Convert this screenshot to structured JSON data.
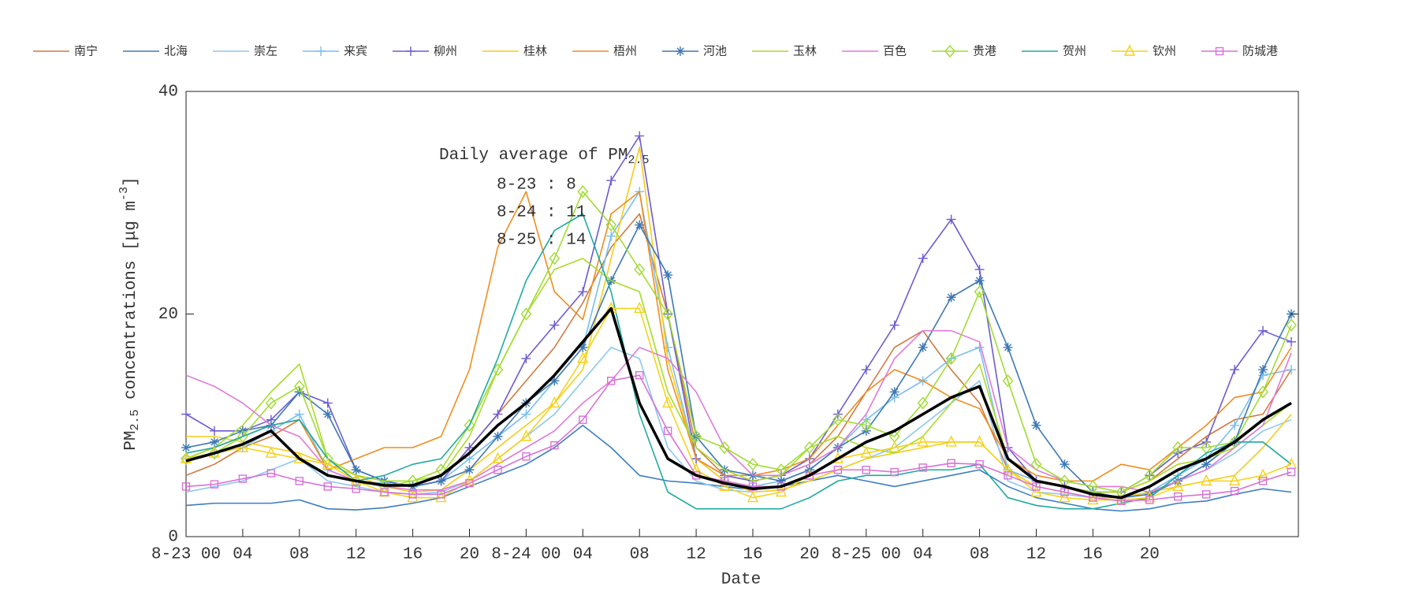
{
  "chart_data": {
    "type": "line",
    "xlabel": "Date",
    "ylabel": [
      "PM",
      "2.5",
      " concentrations [",
      "μg m",
      "-3",
      "]"
    ],
    "annotation": {
      "title": "Daily average of PM",
      "title_sub": "2.5",
      "lines": [
        "8-23 : 8",
        "8-24 : 11",
        "8-25 : 14"
      ]
    },
    "xlim": [
      0,
      78.5
    ],
    "ylim": [
      0,
      40
    ],
    "yticks": [
      0,
      20,
      40
    ],
    "xticks": [
      {
        "value": 0,
        "label": "8-23 00"
      },
      {
        "value": 4,
        "label": "04"
      },
      {
        "value": 8,
        "label": "08"
      },
      12,
      16,
      20,
      {
        "value": 24,
        "label": "8-24 00"
      },
      {
        "value": 28,
        "label": "04"
      },
      {
        "value": 32,
        "label": "08"
      },
      {
        "value": 36,
        "label": "12"
      },
      {
        "value": 40,
        "label": "16"
      },
      {
        "value": 44,
        "label": "20"
      },
      {
        "value": 48,
        "label": "8-25 00"
      },
      {
        "value": 52,
        "label": "04"
      },
      {
        "value": 56,
        "label": "08"
      },
      {
        "value": 60,
        "label": "12"
      },
      {
        "value": 64,
        "label": "16"
      },
      {
        "value": 68,
        "label": "20"
      }
    ],
    "x": [
      0,
      2,
      4,
      6,
      8,
      10,
      12,
      14,
      16,
      18,
      20,
      22,
      24,
      26,
      28,
      30,
      32,
      34,
      36,
      38,
      40,
      42,
      44,
      46,
      48,
      50,
      52,
      54,
      56,
      58,
      60,
      62,
      64,
      66,
      68,
      70,
      72,
      74,
      76,
      78
    ],
    "average": {
      "color": "#000000",
      "values": [
        6.8,
        7.5,
        8.3,
        9.5,
        7,
        5.5,
        5,
        4.6,
        4.6,
        5.5,
        7.5,
        10,
        12,
        14.5,
        17.5,
        20.5,
        12,
        7,
        5.5,
        4.8,
        4.3,
        4.5,
        5.5,
        7,
        8.5,
        9.5,
        11,
        12.5,
        13.5,
        7,
        5,
        4.5,
        3.8,
        3.5,
        4.5,
        6,
        7,
        8.5,
        10.5,
        12
      ]
    },
    "series": [
      {
        "name": "南宁",
        "color": "#d2783c",
        "values": [
          5.5,
          6.5,
          8,
          9,
          10.5,
          7,
          5.5,
          5,
          4.5,
          5,
          8,
          11,
          14,
          17,
          21,
          26,
          29,
          20,
          8,
          5.5,
          5,
          5.5,
          6.5,
          9,
          13,
          17,
          18.5,
          15,
          12,
          6,
          5,
          4.5,
          4,
          4,
          5,
          7,
          9,
          10.5,
          11,
          15
        ]
      },
      {
        "name": "北海",
        "color": "#3c7dbf",
        "values": [
          2.8,
          3,
          3,
          3,
          3.3,
          2.5,
          2.4,
          2.6,
          3,
          3.5,
          4.5,
          5.5,
          6.5,
          8,
          10,
          8,
          5.5,
          5,
          4.8,
          4.5,
          4.2,
          4.5,
          5,
          5.5,
          5,
          4.5,
          5,
          5.5,
          6,
          4.5,
          3.5,
          3,
          2.5,
          2.3,
          2.5,
          3,
          3.2,
          3.8,
          4.3,
          4
        ]
      },
      {
        "name": "崇左",
        "color": "#8cc8f0",
        "values": [
          4,
          4.5,
          5,
          6,
          7,
          5,
          4.5,
          4,
          3.8,
          4,
          5,
          7,
          9,
          11,
          14,
          17,
          16,
          8,
          5,
          4.2,
          4,
          4.2,
          5,
          6,
          7,
          8,
          10,
          12,
          14,
          5,
          4,
          3.8,
          3.5,
          3.5,
          4,
          5,
          6,
          7.5,
          9.5,
          10.5
        ]
      },
      {
        "name": "来宾",
        "color": "#78bfef",
        "marker": "plus",
        "values": [
          7,
          7.5,
          8,
          9.5,
          11,
          6,
          5,
          4.8,
          4.5,
          5,
          7,
          9,
          11,
          14,
          17,
          27,
          31,
          17,
          7,
          5,
          4.5,
          5,
          6,
          8,
          10.5,
          12.5,
          14,
          16,
          17,
          6,
          5,
          4.5,
          4,
          3.5,
          4,
          5.5,
          7,
          10,
          14.5,
          15
        ]
      },
      {
        "name": "柳州",
        "color": "#6b5bd2",
        "marker": "plus",
        "values": [
          11,
          9.5,
          9.5,
          10.5,
          13,
          12,
          6,
          5,
          4.5,
          5,
          8,
          11,
          16,
          19,
          22,
          32,
          36,
          20,
          7,
          5.5,
          5,
          5.5,
          7,
          11,
          15,
          19,
          25,
          28.5,
          24,
          8,
          5,
          4.5,
          4,
          4,
          5.5,
          7.5,
          8.5,
          15,
          18.5,
          17.5
        ]
      },
      {
        "name": "桂林",
        "color": "#f5cc1a",
        "values": [
          9,
          9,
          8.5,
          8,
          7.5,
          6.5,
          5.5,
          4.5,
          4,
          4.2,
          6,
          8,
          10,
          12,
          15,
          25,
          35,
          16,
          7,
          5,
          4,
          4.2,
          5,
          6,
          7,
          7.5,
          8,
          8.5,
          8.5,
          6,
          4.5,
          4,
          3.5,
          3.5,
          4,
          4.5,
          5,
          5.5,
          8,
          11
        ]
      },
      {
        "name": "梧州",
        "color": "#f08c1e",
        "values": [
          7,
          8,
          9,
          10,
          10.5,
          6,
          7,
          8,
          8,
          9,
          15,
          26,
          31,
          22,
          19.5,
          29,
          31,
          15,
          7,
          5.5,
          5.5,
          6,
          7,
          10,
          13,
          15,
          14,
          12.5,
          11.5,
          7,
          5.5,
          5,
          5,
          6.5,
          6,
          8,
          10,
          12.5,
          13,
          17
        ]
      },
      {
        "name": "河池",
        "color": "#3c78b4",
        "marker": "star",
        "values": [
          8,
          8.5,
          9.5,
          10,
          13,
          11,
          6,
          5,
          4.5,
          5,
          6,
          9,
          12,
          14,
          17,
          23,
          28,
          23.5,
          9,
          6,
          5.5,
          5,
          6,
          8,
          9.5,
          13,
          17,
          21.5,
          23,
          17,
          10,
          6.5,
          4,
          3.5,
          3.8,
          5,
          6.5,
          8.5,
          15,
          20
        ]
      },
      {
        "name": "玉林",
        "color": "#a8dc28",
        "values": [
          7,
          8,
          10,
          13,
          15.5,
          7,
          5.5,
          5,
          5,
          5.5,
          9,
          15,
          20,
          24,
          25,
          23,
          22,
          13,
          8,
          6,
          5,
          5.5,
          8,
          9,
          8,
          7.5,
          9,
          12,
          15.5,
          7,
          5,
          4.5,
          4,
          4,
          5,
          6.5,
          7,
          8,
          10,
          12
        ]
      },
      {
        "name": "百色",
        "color": "#e07ad8",
        "values": [
          14.5,
          13.5,
          12,
          10,
          9,
          6,
          5,
          4.5,
          4.2,
          4.2,
          5,
          6.5,
          8,
          9.5,
          12,
          14,
          17,
          16,
          13,
          8,
          5.5,
          5.5,
          6.5,
          8,
          11,
          16,
          18.5,
          18.5,
          17.5,
          8,
          6,
          5,
          4.5,
          4.5,
          4,
          5,
          6,
          8,
          10,
          16.5
        ]
      },
      {
        "name": "贵港",
        "color": "#a0dc32",
        "marker": "diamond",
        "values": [
          7,
          7.5,
          9,
          12,
          13.5,
          7,
          5,
          4.5,
          5,
          6,
          10,
          15,
          20,
          25,
          31,
          28,
          24,
          20,
          9,
          8,
          6.5,
          6,
          8,
          10.5,
          10,
          9,
          12,
          16,
          22,
          14,
          6.5,
          5,
          4.5,
          4,
          5.5,
          8,
          8,
          8.5,
          13,
          19
        ]
      },
      {
        "name": "贺州",
        "color": "#1eaaa0",
        "values": [
          7.5,
          8,
          9,
          10,
          10.5,
          7,
          5,
          5.5,
          6.5,
          7,
          10,
          16,
          23,
          27.5,
          29,
          22,
          11,
          4,
          2.5,
          2.5,
          2.5,
          2.5,
          3.5,
          5,
          5.5,
          5.5,
          6,
          6,
          6.5,
          3.5,
          2.8,
          2.5,
          2.5,
          3,
          3.5,
          5.5,
          7.5,
          8.5,
          8.5,
          6.5
        ]
      },
      {
        "name": "钦州",
        "color": "#f5d21a",
        "marker": "triangle",
        "values": [
          7,
          7.5,
          8,
          7.5,
          7,
          6.5,
          5,
          4,
          3.5,
          3.5,
          5,
          7,
          9,
          12,
          16,
          20.5,
          20.5,
          12,
          6,
          4.5,
          3.5,
          4,
          5.5,
          7,
          7.5,
          8,
          8.5,
          8.5,
          8.5,
          6,
          4,
          3.5,
          3.3,
          3.3,
          3.5,
          4.5,
          5,
          5,
          5.5,
          6.5
        ]
      },
      {
        "name": "防城港",
        "color": "#d871d8",
        "marker": "square",
        "values": [
          4.5,
          4.7,
          5.2,
          5.7,
          5,
          4.5,
          4.3,
          4,
          3.8,
          3.8,
          4.8,
          6,
          7.2,
          8.2,
          10.5,
          14,
          14.5,
          9.5,
          5.5,
          5,
          4.5,
          4.5,
          5.5,
          6,
          6,
          5.8,
          6.2,
          6.6,
          6.5,
          5.5,
          4.5,
          4,
          3.5,
          3.2,
          3.3,
          3.6,
          3.8,
          4.1,
          5,
          5.8
        ]
      }
    ]
  }
}
